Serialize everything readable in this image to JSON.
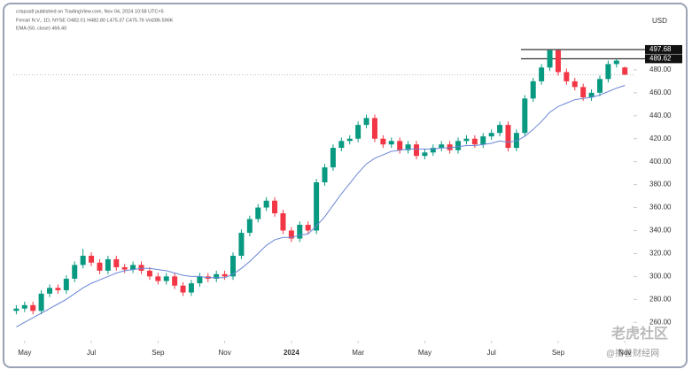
{
  "chart_data": {
    "type": "candlestick",
    "header": [
      "crispus8 published on TradingView.com, Nov 04, 2024 10:58 UTC+5",
      "Ferrari N.V., 1D, NYSE  O482.01 H482.80 L475.37 C475.76 Vol286.596K",
      "EMA (50, close)  466.40"
    ],
    "currency": "USD",
    "watermark": [
      "老虎社区",
      "@撸普财经网"
    ],
    "up_color": "#089981",
    "down_color": "#f23645",
    "x": [
      -0.25,
      0,
      0.25,
      0.5,
      0.75,
      1,
      1.25,
      1.5,
      1.75,
      2,
      2.25,
      2.5,
      2.75,
      3,
      3.25,
      3.5,
      3.75,
      4,
      4.25,
      4.5,
      4.75,
      5,
      5.25,
      5.5,
      5.75,
      6,
      6.25,
      6.5,
      6.75,
      7,
      7.25,
      7.5,
      7.75,
      8,
      8.25,
      8.5,
      8.75,
      9,
      9.25,
      9.5,
      9.75,
      10,
      10.25,
      10.5,
      10.75,
      11,
      11.25,
      11.5,
      11.75,
      12,
      12.25,
      12.5,
      12.75,
      13,
      13.25,
      13.5,
      13.75,
      14,
      14.25,
      14.5,
      14.75,
      15,
      15.25,
      15.5,
      15.75,
      16,
      16.25,
      16.5,
      16.75,
      17,
      17.25,
      17.5,
      17.75,
      18
    ],
    "open": [
      270,
      272,
      275,
      270,
      285,
      290,
      288,
      298,
      310,
      318,
      312,
      305,
      315,
      308,
      306,
      310,
      305,
      300,
      296,
      300,
      292,
      286,
      294,
      300,
      298,
      302,
      300,
      318,
      338,
      350,
      360,
      366,
      355,
      340,
      333,
      345,
      340,
      382,
      395,
      412,
      418,
      420,
      432,
      438,
      420,
      415,
      418,
      410,
      415,
      405,
      408,
      412,
      415,
      410,
      418,
      420,
      415,
      422,
      425,
      432,
      412,
      425,
      455,
      470,
      482,
      497,
      478,
      470,
      465,
      456,
      460,
      472,
      485,
      482.01
    ],
    "high": [
      275,
      278,
      278,
      288,
      293,
      293,
      301,
      313,
      324,
      321,
      315,
      318,
      318,
      311,
      313,
      313,
      308,
      303,
      303,
      303,
      295,
      297,
      303,
      303,
      305,
      305,
      321,
      341,
      353,
      363,
      369,
      369,
      358,
      343,
      348,
      348,
      385,
      398,
      415,
      421,
      423,
      435,
      441,
      441,
      423,
      421,
      421,
      418,
      418,
      411,
      415,
      418,
      418,
      421,
      423,
      423,
      425,
      428,
      435,
      435,
      428,
      458,
      473,
      485,
      497.68,
      497,
      481,
      473,
      468,
      463,
      475,
      488,
      489.62,
      482.8
    ],
    "low": [
      267,
      269,
      267,
      267,
      282,
      285,
      285,
      295,
      307,
      309,
      302,
      302,
      305,
      303,
      303,
      302,
      297,
      293,
      293,
      289,
      283,
      283,
      291,
      295,
      295,
      297,
      297,
      315,
      335,
      347,
      357,
      352,
      337,
      330,
      330,
      337,
      337,
      379,
      392,
      409,
      415,
      417,
      429,
      417,
      412,
      412,
      407,
      407,
      402,
      402,
      405,
      409,
      407,
      407,
      415,
      412,
      412,
      419,
      422,
      409,
      409,
      422,
      452,
      467,
      479,
      475,
      467,
      462,
      453,
      453,
      457,
      469,
      482,
      475.37
    ],
    "close": [
      272,
      275,
      270,
      285,
      290,
      288,
      298,
      310,
      318,
      312,
      305,
      315,
      308,
      306,
      310,
      305,
      300,
      296,
      300,
      292,
      286,
      294,
      300,
      298,
      302,
      300,
      318,
      338,
      350,
      360,
      366,
      355,
      340,
      333,
      345,
      340,
      382,
      395,
      412,
      418,
      420,
      432,
      438,
      420,
      415,
      418,
      410,
      415,
      405,
      408,
      412,
      415,
      410,
      418,
      420,
      415,
      422,
      425,
      432,
      412,
      425,
      455,
      470,
      482,
      497,
      478,
      470,
      465,
      456,
      460,
      472,
      485,
      488,
      475.76
    ],
    "ema": {
      "name": "EMA (50, close)",
      "color": "#6a86d6",
      "values": [
        256,
        260,
        264,
        268,
        272,
        276,
        280,
        285,
        290,
        294,
        297,
        300,
        303,
        305,
        306,
        307,
        307,
        306,
        305,
        303,
        301,
        300,
        300,
        299,
        299,
        299,
        302,
        307,
        313,
        320,
        327,
        332,
        334,
        334,
        336,
        337,
        344,
        352,
        362,
        372,
        381,
        390,
        398,
        403,
        406,
        409,
        410,
        411,
        411,
        411,
        411,
        412,
        412,
        413,
        414,
        414,
        415,
        416,
        418,
        417,
        418,
        422,
        428,
        435,
        443,
        448,
        451,
        454,
        455,
        456,
        458,
        461,
        464,
        466.4
      ]
    },
    "price_lines": [
      {
        "value": 497.68,
        "label": "497.68"
      },
      {
        "value": 489.62,
        "label": "489.62"
      }
    ],
    "last_price": 475.76,
    "xlim": [
      -0.34,
      18.26
    ],
    "xticks": [
      {
        "value": 0,
        "label": "May"
      },
      {
        "value": 2,
        "label": "Jul"
      },
      {
        "value": 4,
        "label": "Sep"
      },
      {
        "value": 6,
        "label": "Nov"
      },
      {
        "value": 8,
        "label": "2024"
      },
      {
        "value": 10,
        "label": "Mar"
      },
      {
        "value": 12,
        "label": "May"
      },
      {
        "value": 14,
        "label": "Jul"
      },
      {
        "value": 16,
        "label": "Sep"
      },
      {
        "value": 18,
        "label": "Nov"
      }
    ],
    "ylim": [
      244,
      520
    ],
    "yticks": [
      {
        "value": 260,
        "label": "260.00"
      },
      {
        "value": 280,
        "label": "280.00"
      },
      {
        "value": 300,
        "label": "300.00"
      },
      {
        "value": 320,
        "label": "320.00"
      },
      {
        "value": 340,
        "label": "340.00"
      },
      {
        "value": 360,
        "label": "360.00"
      },
      {
        "value": 380,
        "label": "380.00"
      },
      {
        "value": 400,
        "label": "400.00"
      },
      {
        "value": 420,
        "label": "420.00"
      },
      {
        "value": 440,
        "label": "440.00"
      },
      {
        "value": 460,
        "label": "460.00"
      },
      {
        "value": 480,
        "label": "480.00"
      }
    ]
  }
}
